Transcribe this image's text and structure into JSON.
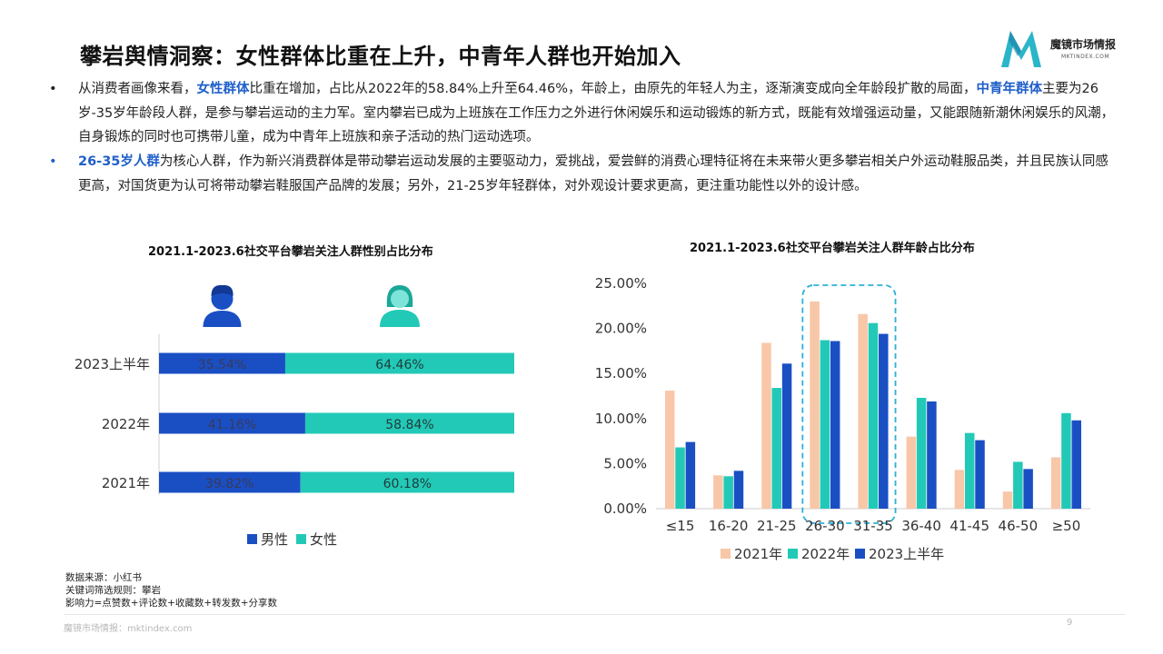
{
  "page": {
    "title": "攀岩舆情洞察：女性群体比重在上升，中青年人群也开始加入",
    "page_number": "9"
  },
  "logo": {
    "brand": "魔镜市场情报",
    "domain": "MKTINDEX.COM",
    "mark_color": "#2bb5c8"
  },
  "bullets": [
    {
      "dot": "•",
      "dot_color": "#222222",
      "segments": [
        {
          "text": "从消费者画像来看，",
          "hl": false
        },
        {
          "text": "女性群体",
          "hl": true
        },
        {
          "text": "比重在增加，占比从2022年的58.84%上升至64.46%，年龄上，由原先的年轻人为主，逐渐演变成向全年龄段扩散的局面，",
          "hl": false
        },
        {
          "text": "中青年群体",
          "hl": true
        },
        {
          "text": "主要为26岁-35岁年龄段人群，是参与攀岩运动的主力军。室内攀岩已成为上班族在工作压力之外进行休闲娱乐和运动锻炼的新方式，既能有效增强运动量，又能跟随新潮休闲娱乐的风潮，自身锻炼的同时也可携带儿童，成为中青年上班族和亲子活动的热门运动选项。",
          "hl": false
        }
      ]
    },
    {
      "dot": "•",
      "dot_color": "#1f5fc9",
      "segments": [
        {
          "text": "26-35岁人群",
          "hl": true
        },
        {
          "text": "为核心人群，作为新兴消费群体是带动攀岩运动发展的主要驱动力，爱挑战，爱尝鲜的消费心理特征将在未来带火更多攀岩相关户外运动鞋服品类，并且民族认同感更高，对国货更为认可将带动攀岩鞋服国产品牌的发展；另外，21-25岁年轻群体，对外观设计要求更高，更注重功能性以外的设计感。",
          "hl": false
        }
      ]
    }
  ],
  "highlight_color": "#1f5fc9",
  "chart_data": [
    {
      "type": "bar",
      "orientation": "horizontal",
      "stacked": true,
      "percent_stacked": true,
      "title": "2021.1-2023.6社交平台攀岩关注人群性别占比分布",
      "categories": [
        "2023上半年",
        "2022年",
        "2021年"
      ],
      "series": [
        {
          "name": "男性",
          "color": "#1a4fc4",
          "values": [
            35.54,
            41.16,
            39.82
          ],
          "labels": [
            "35.54%",
            "41.16%",
            "39.82%"
          ],
          "icon": "male-person-icon"
        },
        {
          "name": "女性",
          "color": "#23c9b7",
          "values": [
            64.46,
            58.84,
            60.18
          ],
          "labels": [
            "64.46%",
            "58.84%",
            "60.18%"
          ],
          "icon": "female-person-icon"
        }
      ],
      "xlim": [
        0,
        100
      ],
      "legend_position": "bottom",
      "grid": false
    },
    {
      "type": "bar",
      "title": "2021.1-2023.6社交平台攀岩关注人群年龄占比分布",
      "categories": [
        "≤15",
        "16-20",
        "21-25",
        "26-30",
        "31-35",
        "36-40",
        "41-45",
        "46-50",
        "≥50"
      ],
      "series": [
        {
          "name": "2021年",
          "color": "#f8c7a8",
          "values": [
            13.1,
            3.7,
            18.4,
            23.0,
            21.6,
            8.0,
            4.3,
            1.9,
            5.7
          ]
        },
        {
          "name": "2022年",
          "color": "#23c9b7",
          "values": [
            6.8,
            3.6,
            13.4,
            18.7,
            20.6,
            12.3,
            8.4,
            5.2,
            10.6
          ]
        },
        {
          "name": "2023上半年",
          "color": "#1a4fc4",
          "values": [
            7.4,
            4.2,
            16.1,
            18.6,
            19.4,
            11.9,
            7.6,
            4.4,
            9.8
          ]
        }
      ],
      "yticks": [
        "0.00%",
        "5.00%",
        "10.00%",
        "15.00%",
        "20.00%",
        "25.00%"
      ],
      "ylim": [
        0,
        25
      ],
      "highlight_categories": [
        "26-30",
        "31-35"
      ],
      "highlight_color": "#2bb0d8",
      "legend_position": "bottom",
      "grid": false
    }
  ],
  "footnote": {
    "lines": [
      "数据来源：小红书",
      "关键词筛选规则：攀岩",
      "影响力=点赞数+评论数+收藏数+转发数+分享数"
    ]
  },
  "footer": {
    "source": "魔镜市场情报：mktindex.com"
  }
}
